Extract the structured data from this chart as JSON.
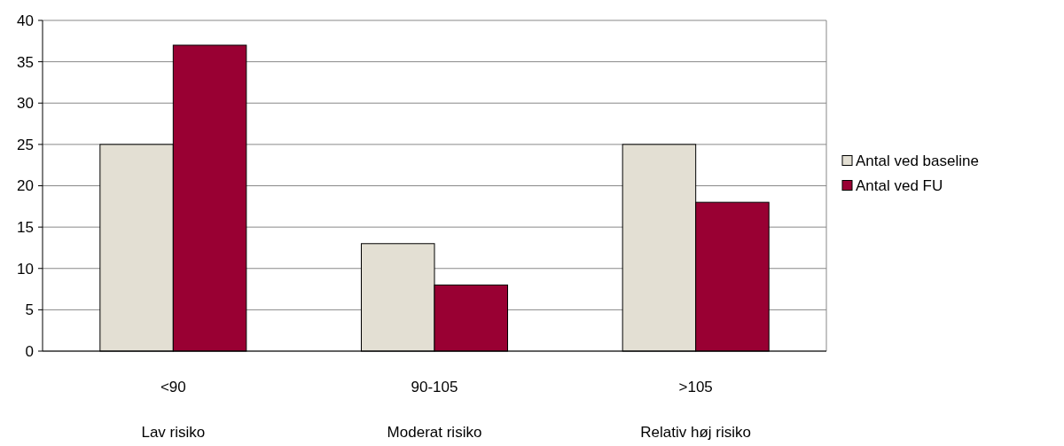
{
  "chart_data": {
    "type": "bar",
    "categories": [
      "<90\nLav risiko",
      "90-105\nModerat risiko",
      ">105\nRelativ høj risiko"
    ],
    "series": [
      {
        "name": "Antal ved baseline",
        "color": "#e3dfd3",
        "values": [
          25,
          13,
          25
        ]
      },
      {
        "name": "Antal ved FU",
        "color": "#990033",
        "values": [
          37,
          8,
          18
        ]
      }
    ],
    "ylim": [
      0,
      40
    ],
    "yticks": [
      0,
      5,
      10,
      15,
      20,
      25,
      30,
      35,
      40
    ],
    "grid": "y",
    "legend": "right"
  }
}
